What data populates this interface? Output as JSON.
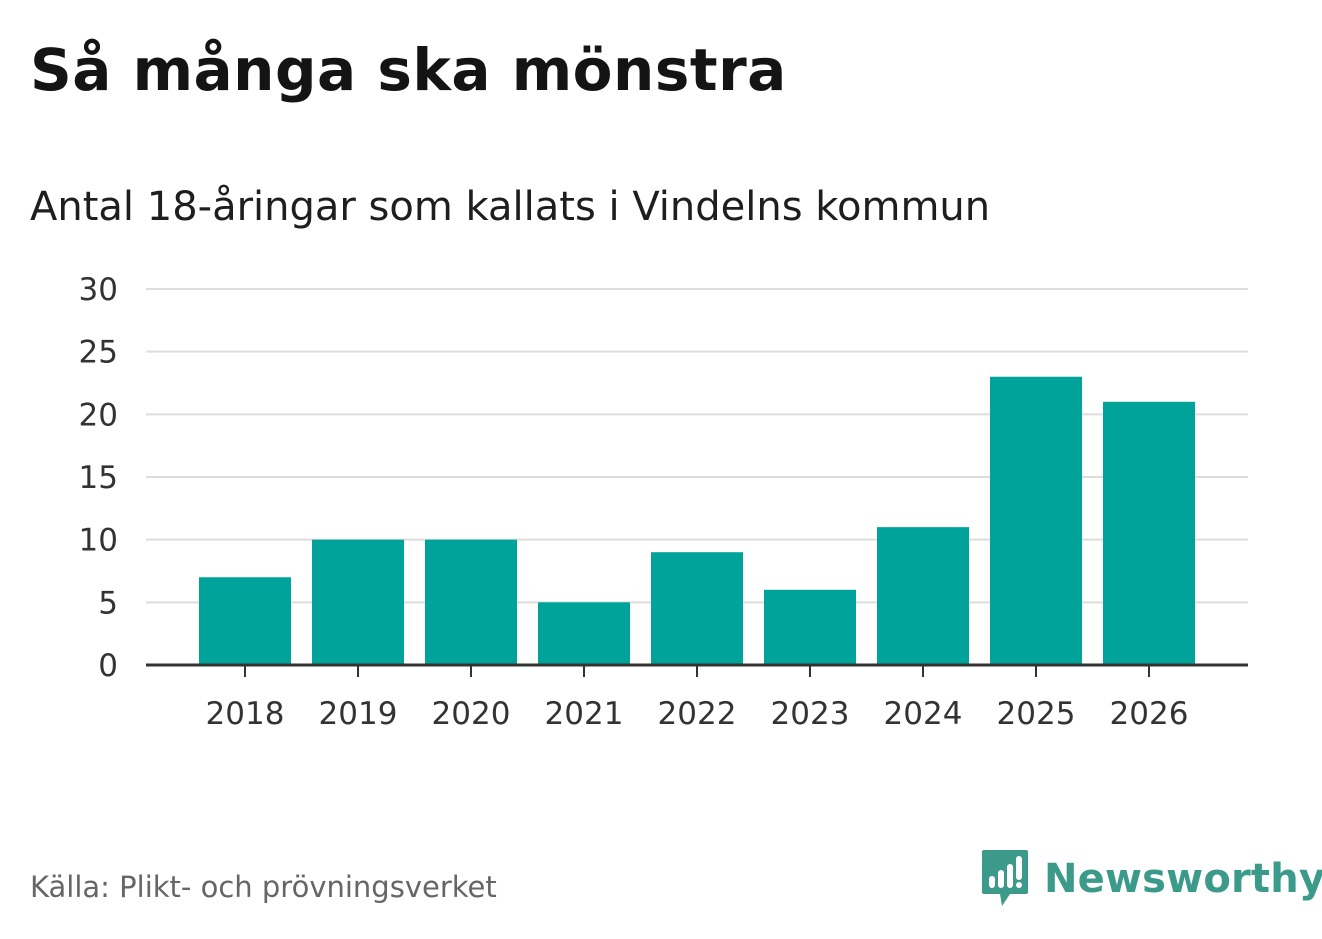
{
  "header": {
    "title": "Så många ska mönstra",
    "subtitle": "Antal 18-åringar som kallats i Vindelns kommun"
  },
  "footer": {
    "source": "Källa: Plikt- och prövningsverket",
    "brand": "Newsworthy",
    "brand_icon": "newsworthy-logo-icon"
  },
  "colors": {
    "bar": "#00a39a",
    "grid": "#dddddd",
    "axis": "#333333",
    "brand": "#3b9a8a"
  },
  "chart_data": {
    "type": "bar",
    "title": "Så många ska mönstra",
    "subtitle": "Antal 18-åringar som kallats i Vindelns kommun",
    "categories": [
      "2018",
      "2019",
      "2020",
      "2021",
      "2022",
      "2023",
      "2024",
      "2025",
      "2026"
    ],
    "values": [
      7,
      10,
      10,
      5,
      9,
      6,
      11,
      23,
      21
    ],
    "xlabel": "",
    "ylabel": "",
    "ylim": [
      0,
      30
    ],
    "yticks": [
      0,
      5,
      10,
      15,
      20,
      25,
      30
    ],
    "grid": true,
    "legend": "none"
  }
}
